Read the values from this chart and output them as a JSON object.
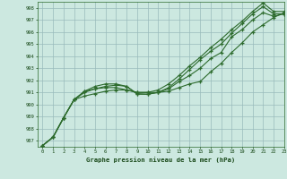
{
  "title": "Graphe pression niveau de la mer (hPa)",
  "bg_color": "#cce8e0",
  "grid_color": "#99bbbb",
  "line_color": "#2d6b2d",
  "xlim": [
    -0.5,
    23
  ],
  "ylim": [
    986.5,
    998.5
  ],
  "yticks": [
    987,
    988,
    989,
    990,
    991,
    992,
    993,
    994,
    995,
    996,
    997,
    998
  ],
  "xticks": [
    0,
    1,
    2,
    3,
    4,
    5,
    6,
    7,
    8,
    9,
    10,
    11,
    12,
    13,
    14,
    15,
    16,
    17,
    18,
    19,
    20,
    21,
    22,
    23
  ],
  "series": [
    [
      986.6,
      987.3,
      988.9,
      990.4,
      990.7,
      990.9,
      991.1,
      991.2,
      991.2,
      991.0,
      991.0,
      991.0,
      991.1,
      991.4,
      991.7,
      991.9,
      992.7,
      993.4,
      994.3,
      995.1,
      996.0,
      996.6,
      997.2,
      997.6
    ],
    [
      986.6,
      987.3,
      988.9,
      990.4,
      991.1,
      991.3,
      991.5,
      991.6,
      991.5,
      990.9,
      990.85,
      991.0,
      991.3,
      991.9,
      992.4,
      993.0,
      993.8,
      994.3,
      995.6,
      996.2,
      997.0,
      997.6,
      997.3,
      997.5
    ],
    [
      986.6,
      987.3,
      988.9,
      990.4,
      991.1,
      991.5,
      991.7,
      991.7,
      991.5,
      990.85,
      990.85,
      991.0,
      991.4,
      992.1,
      992.9,
      993.7,
      994.4,
      995.0,
      995.9,
      996.7,
      997.5,
      998.1,
      997.5,
      997.5
    ],
    [
      986.6,
      987.3,
      988.9,
      990.4,
      991.0,
      991.3,
      991.4,
      991.4,
      991.2,
      991.0,
      991.0,
      991.2,
      991.7,
      992.4,
      993.2,
      993.9,
      994.7,
      995.4,
      996.2,
      996.9,
      997.7,
      998.4,
      997.7,
      997.7
    ]
  ]
}
